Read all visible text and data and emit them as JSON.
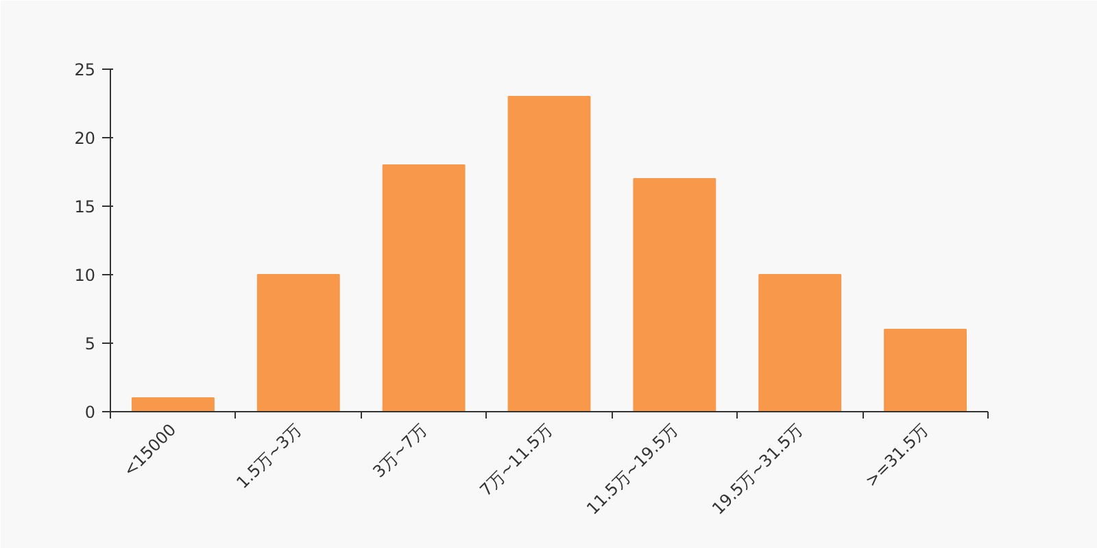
{
  "chart_data": {
    "type": "bar",
    "categories": [
      "<15000",
      "1.5万~3万",
      "3万~7万",
      "7万~11.5万",
      "11.5万~19.5万",
      "19.5万~31.5万",
      ">=31.5万"
    ],
    "values": [
      1,
      10,
      18,
      23,
      17,
      10,
      6
    ],
    "color": "#f8984a",
    "ylim": [
      0,
      25
    ],
    "yticks": [
      0,
      5,
      10,
      15,
      20,
      25
    ]
  }
}
